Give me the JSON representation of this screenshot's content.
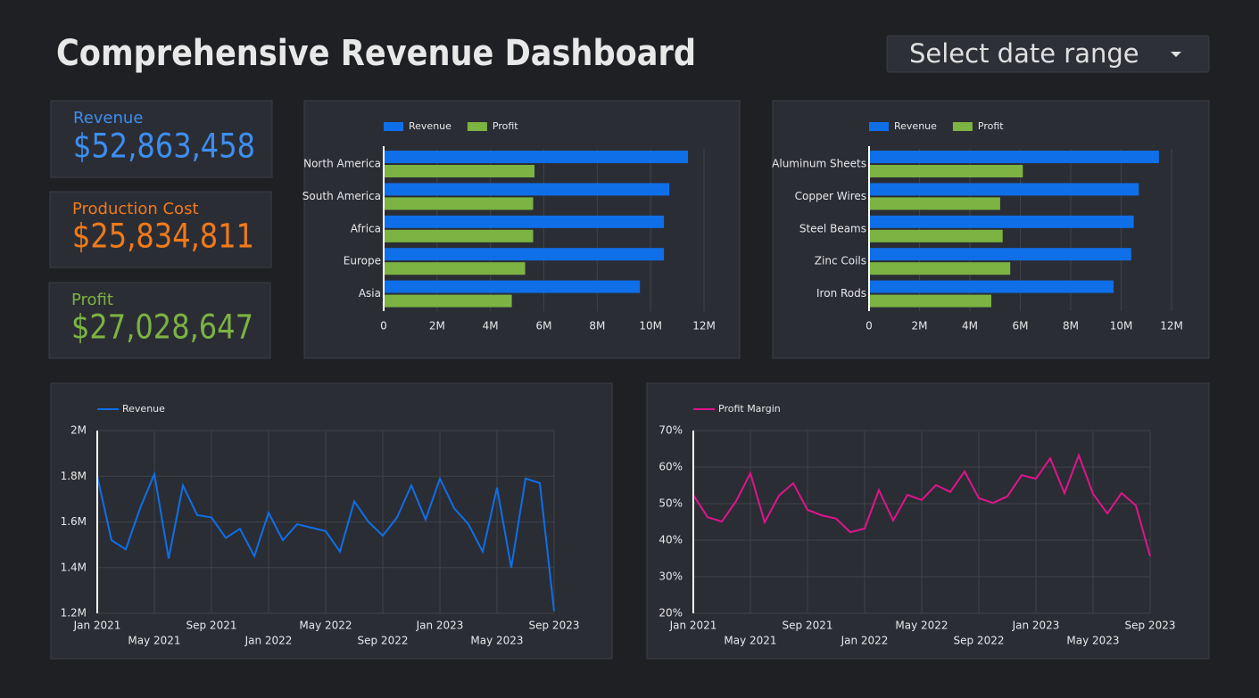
{
  "header": {
    "title": "Comprehensive Revenue Dashboard",
    "dropdown": "Select date range"
  },
  "kpis": [
    {
      "label": "Revenue",
      "value": "$52,863,458",
      "color": "#3d8ef0"
    },
    {
      "label": "Production Cost",
      "value": "$25,834,811",
      "color": "#f07a1a"
    },
    {
      "label": "Profit",
      "value": "$27,028,647",
      "color": "#7cb342"
    }
  ],
  "chart_data": [
    {
      "type": "bar",
      "horizontal": true,
      "categories": [
        "North America",
        "South America",
        "Africa",
        "Europe",
        "Asia"
      ],
      "series": [
        {
          "name": "Revenue",
          "color": "#0f6fe8",
          "values": [
            11400000,
            10700000,
            10500000,
            10500000,
            9600000
          ]
        },
        {
          "name": "Profit",
          "color": "#7cb342",
          "values": [
            5650000,
            5600000,
            5600000,
            5300000,
            4800000
          ]
        }
      ],
      "xlim": [
        0,
        12000000
      ],
      "xticks": [
        0,
        {
          "value": 2000000,
          "label": "2M"
        },
        {
          "value": 4000000,
          "label": "4M"
        },
        {
          "value": 6000000,
          "label": "6M"
        },
        {
          "value": 8000000,
          "label": "8M"
        },
        {
          "value": 10000000,
          "label": "10M"
        },
        {
          "value": 12000000,
          "label": "12M"
        }
      ],
      "grid": true
    },
    {
      "type": "bar",
      "horizontal": true,
      "categories": [
        "Aluminum Sheets",
        "Copper Wires",
        "Steel Beams",
        "Zinc Coils",
        "Iron Rods"
      ],
      "series": [
        {
          "name": "Revenue",
          "color": "#0f6fe8",
          "values": [
            11500000,
            10700000,
            10500000,
            10400000,
            9700000
          ]
        },
        {
          "name": "Profit",
          "color": "#7cb342",
          "values": [
            6100000,
            5200000,
            5300000,
            5600000,
            4850000
          ]
        }
      ],
      "xlim": [
        0,
        12000000
      ],
      "xticks": [
        0,
        {
          "value": 2000000,
          "label": "2M"
        },
        {
          "value": 4000000,
          "label": "4M"
        },
        {
          "value": 6000000,
          "label": "6M"
        },
        {
          "value": 8000000,
          "label": "8M"
        },
        {
          "value": 10000000,
          "label": "10M"
        },
        {
          "value": 12000000,
          "label": "12M"
        }
      ],
      "grid": true
    },
    {
      "type": "line",
      "categories": [
        "Jan 2021",
        null,
        null,
        null,
        "May 2021",
        null,
        null,
        null,
        "Sep 2021",
        null,
        null,
        null,
        "Jan 2022",
        null,
        null,
        null,
        "May 2022",
        null,
        null,
        null,
        "Sep 2022",
        null,
        null,
        null,
        "Jan 2023",
        null,
        null,
        null,
        "May 2023",
        null,
        null,
        null,
        "Sep 2023"
      ],
      "series": [
        {
          "name": "Revenue",
          "color": "#0f6fe8",
          "values": [
            1800000,
            1520000,
            1480000,
            1660000,
            1810000,
            1440000,
            1760000,
            1630000,
            1620000,
            1530000,
            1570000,
            1450000,
            1640000,
            1520000,
            1590000,
            1575000,
            1560000,
            1470000,
            1690000,
            1600000,
            1540000,
            1620000,
            1760000,
            1610000,
            1790000,
            1660000,
            1590000,
            1470000,
            1750000,
            1400000,
            1790000,
            1770000,
            1210000
          ]
        }
      ],
      "ylim": [
        1200000,
        2000000
      ],
      "yticks": [
        {
          "value": 1200000,
          "label": "1.2M"
        },
        {
          "value": 1400000,
          "label": "1.4M"
        },
        {
          "value": 1600000,
          "label": "1.6M"
        },
        {
          "value": 1800000,
          "label": "1.8M"
        },
        {
          "value": 2000000,
          "label": "2M"
        }
      ],
      "grid": true
    },
    {
      "type": "line",
      "categories": [
        "Jan 2021",
        null,
        null,
        null,
        "May 2021",
        null,
        null,
        null,
        "Sep 2021",
        null,
        null,
        null,
        "Jan 2022",
        null,
        null,
        null,
        "May 2022",
        null,
        null,
        null,
        "Sep 2022",
        null,
        null,
        null,
        "Jan 2023",
        null,
        null,
        null,
        "May 2023",
        null,
        null,
        null,
        "Sep 2023"
      ],
      "series": [
        {
          "name": "Profit Margin",
          "color": "#e0148c",
          "values": [
            52.4,
            46.3,
            45.1,
            50.7,
            58.3,
            44.9,
            52.2,
            55.6,
            48.3,
            46.8,
            45.9,
            42.2,
            43.2,
            53.7,
            45.4,
            52.4,
            51.0,
            55.1,
            53.2,
            58.8,
            51.5,
            50.2,
            52.0,
            57.8,
            56.8,
            62.4,
            52.9,
            63.2,
            52.7,
            47.3,
            52.9,
            49.5,
            35.6
          ]
        }
      ],
      "ylim": [
        20,
        70
      ],
      "yticks": [
        {
          "value": 20,
          "label": "20%"
        },
        {
          "value": 30,
          "label": "30%"
        },
        {
          "value": 40,
          "label": "40%"
        },
        {
          "value": 50,
          "label": "50%"
        },
        {
          "value": 60,
          "label": "60%"
        },
        {
          "value": 70,
          "label": "70%"
        }
      ],
      "grid": true
    }
  ]
}
